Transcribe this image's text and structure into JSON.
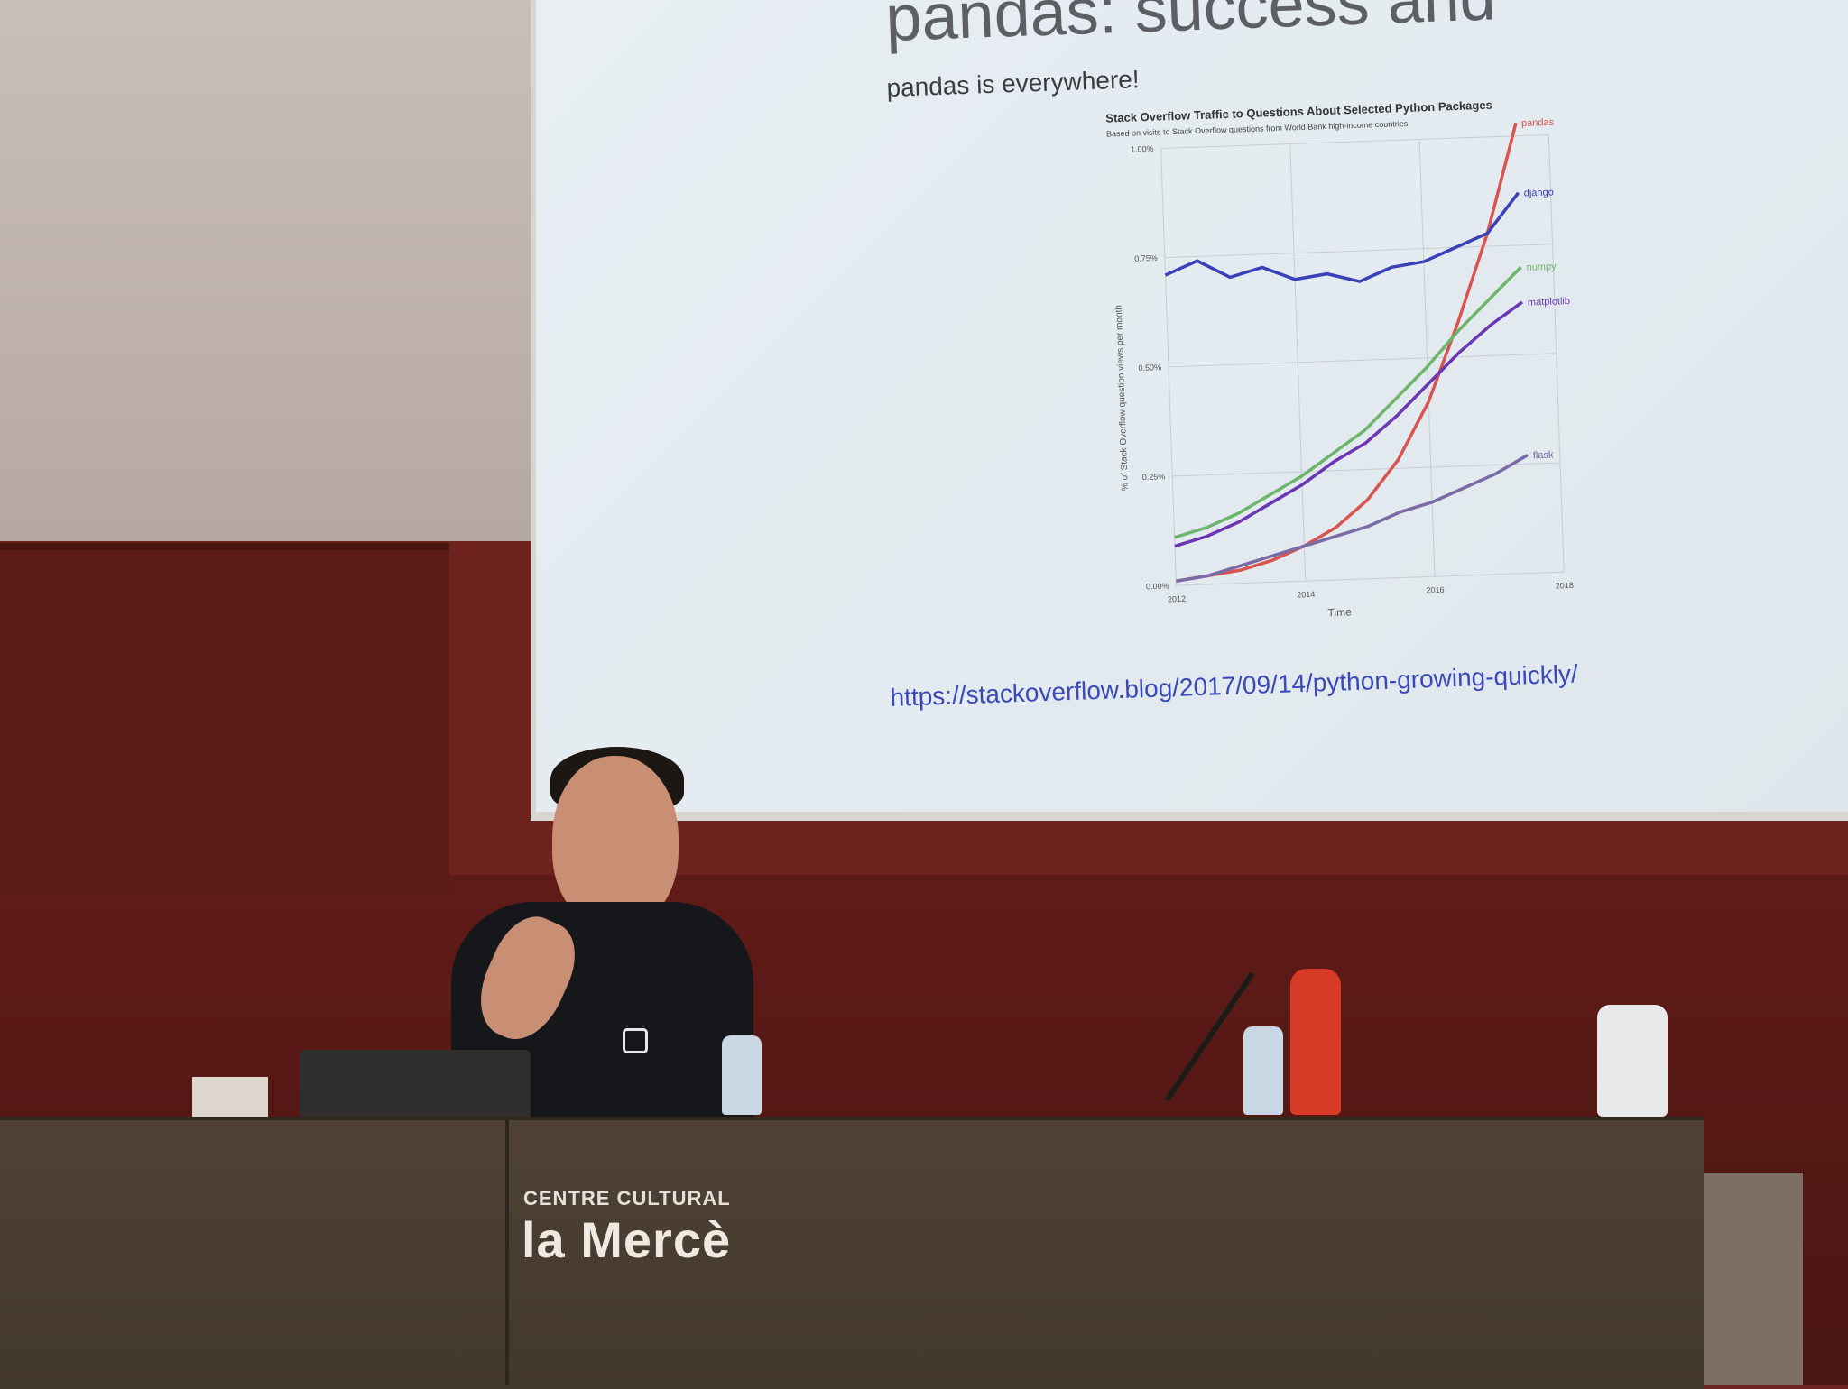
{
  "slide": {
    "title": "pandas: success and",
    "subtitle": "pandas is everywhere!",
    "link": "https://stackoverflow.blog/2017/09/14/python-growing-quickly/"
  },
  "chart_data": {
    "type": "line",
    "title": "Stack Overflow Traffic to Questions About Selected Python Packages",
    "subtitle": "Based on visits to Stack Overflow questions from World Bank high-income countries",
    "xlabel": "Time",
    "ylabel": "% of Stack Overflow question views per month",
    "xlim": [
      2012,
      2018
    ],
    "ylim": [
      0,
      1.0
    ],
    "x_ticks": [
      "2012",
      "2014",
      "2016",
      "2018"
    ],
    "y_ticks": [
      "0.00%",
      "0.25%",
      "0.50%",
      "0.75%",
      "1.00%"
    ],
    "x": [
      2012.0,
      2012.5,
      2013.0,
      2013.5,
      2014.0,
      2014.5,
      2015.0,
      2015.5,
      2016.0,
      2016.5,
      2017.0,
      2017.5
    ],
    "series": [
      {
        "name": "pandas",
        "color": "#d9534f",
        "values": [
          0.01,
          0.02,
          0.03,
          0.05,
          0.08,
          0.12,
          0.18,
          0.27,
          0.4,
          0.58,
          0.78,
          1.03
        ]
      },
      {
        "name": "django",
        "color": "#3a40b8",
        "values": [
          0.71,
          0.74,
          0.7,
          0.72,
          0.69,
          0.7,
          0.68,
          0.71,
          0.72,
          0.75,
          0.78,
          0.87
        ]
      },
      {
        "name": "numpy",
        "color": "#6db56b",
        "values": [
          0.11,
          0.13,
          0.16,
          0.2,
          0.24,
          0.29,
          0.34,
          0.41,
          0.48,
          0.56,
          0.63,
          0.7
        ]
      },
      {
        "name": "matplotlib",
        "color": "#6a36b4",
        "values": [
          0.09,
          0.11,
          0.14,
          0.18,
          0.22,
          0.27,
          0.31,
          0.37,
          0.44,
          0.51,
          0.57,
          0.62
        ]
      },
      {
        "name": "flask",
        "color": "#7a6aa6",
        "values": [
          0.01,
          0.02,
          0.04,
          0.06,
          0.08,
          0.1,
          0.12,
          0.15,
          0.17,
          0.2,
          0.23,
          0.27
        ]
      }
    ],
    "grid": true,
    "legend": "line-end labels"
  },
  "desk": {
    "brand_line1": "CENTRE CULTURAL",
    "brand_line2": "la Mercè"
  }
}
